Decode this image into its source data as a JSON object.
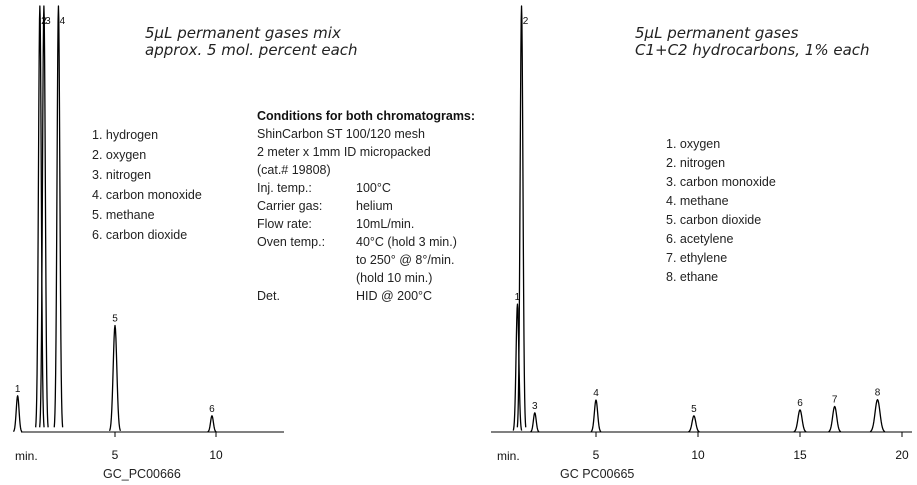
{
  "chart_data": [
    {
      "type": "line",
      "title": "5µL permanent gases mix",
      "subtitle": "approx. 5 mol. percent each",
      "xlabel": "min.",
      "footer": "GC_PC00666",
      "xlim": [
        0,
        13.1
      ],
      "x_ticks": [
        "5",
        "10"
      ],
      "peak_labels": [
        "1",
        "2",
        "3",
        "4",
        "5",
        "6"
      ],
      "peaks": [
        {
          "id": "1",
          "rt": 0.18,
          "height": 0.085,
          "width": 0.035
        },
        {
          "id": "2",
          "rt": 1.28,
          "height": 1.0,
          "width": 0.055
        },
        {
          "id": "3",
          "rt": 1.48,
          "height": 1.0,
          "width": 0.055
        },
        {
          "id": "4",
          "rt": 2.2,
          "height": 1.0,
          "width": 0.05
        },
        {
          "id": "5",
          "rt": 5.0,
          "height": 0.25,
          "width": 0.09
        },
        {
          "id": "6",
          "rt": 9.8,
          "height": 0.038,
          "width": 0.07
        }
      ],
      "compounds": [
        "1. hydrogen",
        "2. oxygen",
        "3. nitrogen",
        "4. carbon monoxide",
        "5. methane",
        "6. carbon dioxide"
      ]
    },
    {
      "type": "line",
      "title": "5µL permanent gases",
      "subtitle": "C1+C2 hydrocarbons, 1% each",
      "xlabel": "min.",
      "footer": "GC  PC00665",
      "xlim": [
        0,
        20
      ],
      "x_ticks": [
        "5",
        "10",
        "15",
        "20"
      ],
      "peak_labels": [
        "1",
        "2",
        "3",
        "4",
        "5",
        "6",
        "7",
        "8"
      ],
      "peaks": [
        {
          "id": "1",
          "rt": 1.15,
          "height": 0.3,
          "width": 0.045
        },
        {
          "id": "2",
          "rt": 1.35,
          "height": 1.0,
          "width": 0.05
        },
        {
          "id": "3",
          "rt": 2.0,
          "height": 0.045,
          "width": 0.05
        },
        {
          "id": "4",
          "rt": 5.0,
          "height": 0.075,
          "width": 0.08
        },
        {
          "id": "5",
          "rt": 9.8,
          "height": 0.038,
          "width": 0.09
        },
        {
          "id": "6",
          "rt": 15.0,
          "height": 0.052,
          "width": 0.1
        },
        {
          "id": "7",
          "rt": 16.7,
          "height": 0.06,
          "width": 0.1
        },
        {
          "id": "8",
          "rt": 18.8,
          "height": 0.076,
          "width": 0.12
        }
      ],
      "compounds": [
        "1. oxygen",
        "2. nitrogen",
        "3. carbon monoxide",
        "4. methane",
        "5. carbon dioxide",
        "6. acetylene",
        "7. ethylene",
        "8. ethane"
      ]
    }
  ],
  "conditions": {
    "heading": "Conditions for both chromatograms:",
    "column": "ShinCarbon ST 100/120 mesh",
    "dimensions": "2 meter x 1mm ID micropacked",
    "catalog": "(cat.# 19808)",
    "rows": [
      {
        "label": "Inj. temp.:",
        "value": "100°C"
      },
      {
        "label": "Carrier gas:",
        "value": "helium"
      },
      {
        "label": "Flow rate:",
        "value": "10mL/min."
      },
      {
        "label": "Oven temp.:",
        "value": "40°C (hold 3 min.)"
      },
      {
        "label": "",
        "value": "to 250°  @ 8°/min."
      },
      {
        "label": "",
        "value": "(hold 10 min.)"
      },
      {
        "label": "Det.",
        "value": "HID @ 200°C"
      }
    ]
  }
}
